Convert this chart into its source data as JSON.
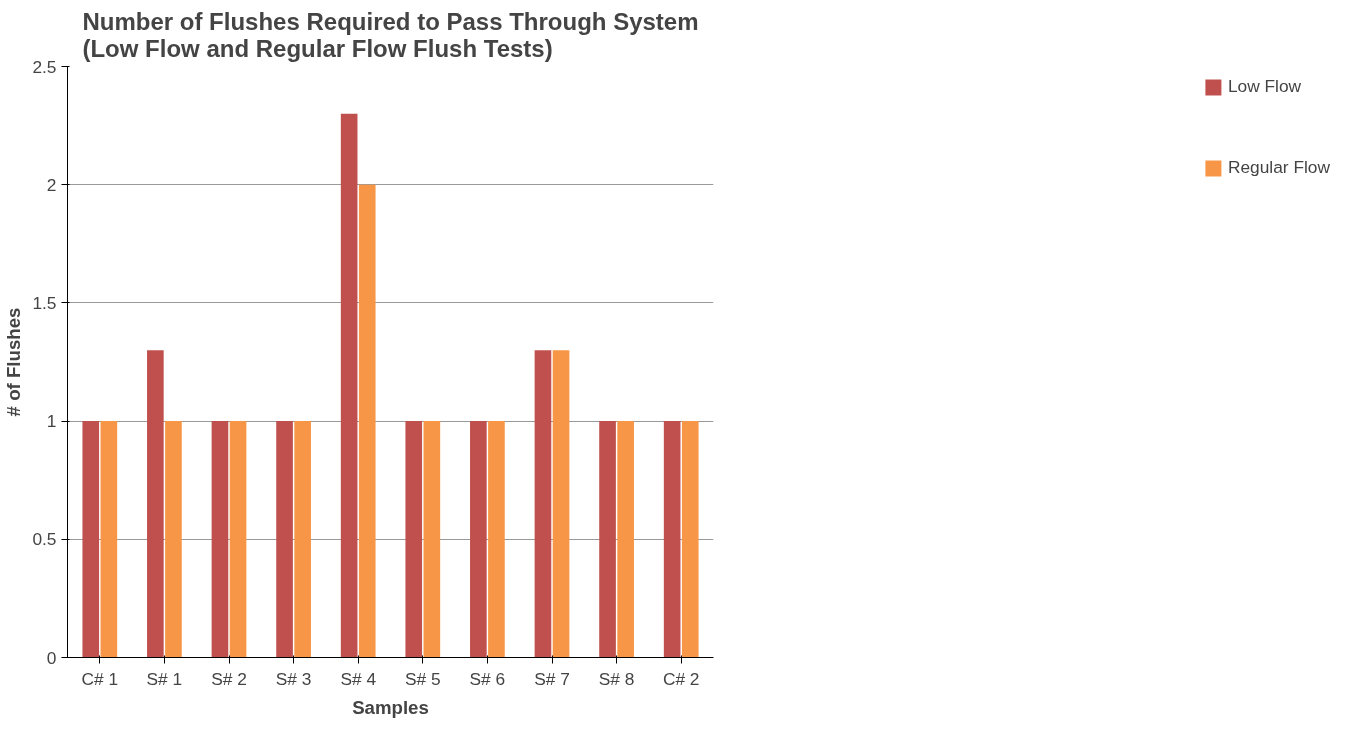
{
  "chart_data": {
    "type": "bar",
    "title": "Number of Flushes Required to Pass Through System\n(Low Flow and Regular Flow Flush Tests)",
    "xlabel": "Samples",
    "ylabel": "# of Flushes",
    "categories": [
      "C# 1",
      "S# 1",
      "S# 2",
      "S# 3",
      "S# 4",
      "S# 5",
      "S# 6",
      "S# 7",
      "S# 8",
      "C# 2"
    ],
    "series": [
      {
        "name": "Low Flow",
        "color": "#c0504d",
        "values": [
          1,
          1.3,
          1,
          1,
          2.3,
          1,
          1,
          1.3,
          1,
          1
        ]
      },
      {
        "name": "Regular Flow",
        "color": "#f79646",
        "values": [
          1,
          1,
          1,
          1,
          2,
          1,
          1,
          1.3,
          1,
          1
        ]
      }
    ],
    "ylim": [
      0,
      2.5
    ],
    "yticks": [
      0,
      0.5,
      1,
      1.5,
      2,
      2.5
    ],
    "grid": "y",
    "legend": "right"
  }
}
